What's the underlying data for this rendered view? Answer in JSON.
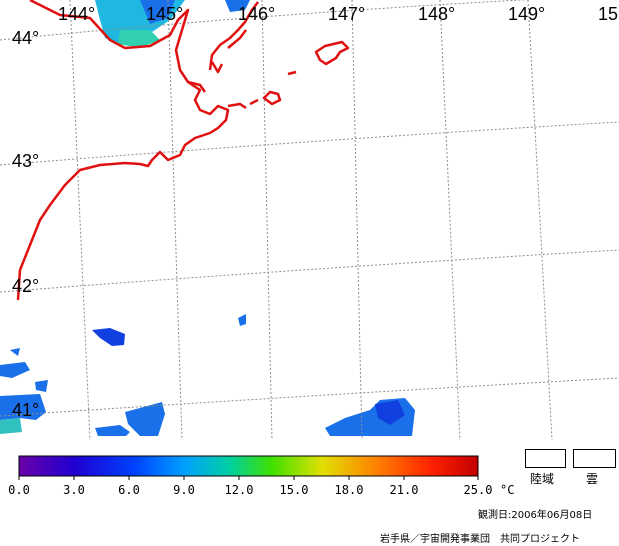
{
  "map": {
    "lon_labels": [
      "144°",
      "145°",
      "146°",
      "147°",
      "148°",
      "149°",
      "15"
    ],
    "lat_labels": [
      "44°",
      "43°",
      "42°",
      "41°"
    ]
  },
  "colorbar": {
    "ticks": [
      "0.0",
      "3.0",
      "6.0",
      "9.0",
      "12.0",
      "15.0",
      "18.0",
      "21.0",
      "25.0"
    ],
    "unit": "°C",
    "colors": [
      "#6a00a8",
      "#2000d0",
      "#0040ff",
      "#00a0ff",
      "#00d0a0",
      "#40e000",
      "#e0e000",
      "#ff8000",
      "#ff2000",
      "#c00000"
    ]
  },
  "legend": {
    "land_label": "陸域",
    "cloud_label": "雲"
  },
  "footer": {
    "obs_date": "観測日:2006年06月08日",
    "credit": "岩手県／宇宙開発事業団　共同プロジェクト"
  },
  "colors": {
    "coastline": "#e01010",
    "grid": "#8c8c8c"
  }
}
